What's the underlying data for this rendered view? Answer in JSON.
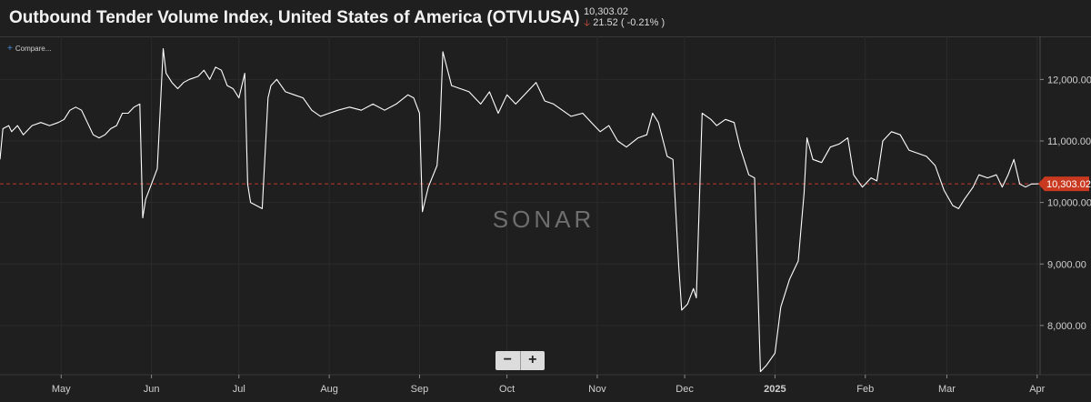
{
  "header": {
    "title": "Outbound Tender Volume Index, United States of America (OTVI.USA)",
    "last_value": "10,303.02",
    "change": "21.52",
    "change_pct": "( -0.21% )",
    "change_direction": "down"
  },
  "toolbar": {
    "compare_label": "Compare..."
  },
  "watermark": "SONAR",
  "zoom": {
    "minus_label": "−",
    "plus_label": "+"
  },
  "colors": {
    "background": "#1f1f1f",
    "line": "#ffffff",
    "price_line": "#c0392b",
    "price_tag": "#c9391f",
    "down_arrow": "#e0533a"
  },
  "chart_data": {
    "type": "line",
    "title": "Outbound Tender Volume Index, United States of America (OTVI.USA)",
    "xlabel": "",
    "ylabel": "",
    "x_ticks": [
      "May",
      "Jun",
      "Jul",
      "Aug",
      "Sep",
      "Oct",
      "Nov",
      "Dec",
      "2025",
      "Feb",
      "Mar",
      "Apr"
    ],
    "y_ticks": [
      "12,000.00",
      "11,000.00",
      "10,000.00",
      "9,000.00",
      "8,000.00"
    ],
    "ylim": [
      7200,
      12700
    ],
    "xlim": [
      "2024-04-10",
      "2025-04-02"
    ],
    "grid": true,
    "current_value": 10303.02,
    "current_value_label": "10,303.02",
    "series": [
      {
        "points": [
          [
            "2024-04-10",
            10700
          ],
          [
            "2024-04-11",
            11200
          ],
          [
            "2024-04-13",
            11250
          ],
          [
            "2024-04-14",
            11150
          ],
          [
            "2024-04-16",
            11250
          ],
          [
            "2024-04-18",
            11100
          ],
          [
            "2024-04-21",
            11250
          ],
          [
            "2024-04-24",
            11300
          ],
          [
            "2024-04-27",
            11250
          ],
          [
            "2024-04-30",
            11300
          ],
          [
            "2024-05-02",
            11350
          ],
          [
            "2024-05-04",
            11500
          ],
          [
            "2024-05-06",
            11550
          ],
          [
            "2024-05-08",
            11500
          ],
          [
            "2024-05-10",
            11300
          ],
          [
            "2024-05-12",
            11100
          ],
          [
            "2024-05-14",
            11050
          ],
          [
            "2024-05-16",
            11100
          ],
          [
            "2024-05-18",
            11200
          ],
          [
            "2024-05-20",
            11250
          ],
          [
            "2024-05-22",
            11450
          ],
          [
            "2024-05-24",
            11450
          ],
          [
            "2024-05-26",
            11550
          ],
          [
            "2024-05-28",
            11600
          ],
          [
            "2024-05-29",
            9750
          ],
          [
            "2024-05-30",
            10050
          ],
          [
            "2024-06-01",
            10300
          ],
          [
            "2024-06-03",
            10550
          ],
          [
            "2024-06-04",
            11500
          ],
          [
            "2024-06-05",
            12500
          ],
          [
            "2024-06-06",
            12100
          ],
          [
            "2024-06-08",
            11950
          ],
          [
            "2024-06-10",
            11850
          ],
          [
            "2024-06-12",
            11950
          ],
          [
            "2024-06-14",
            12000
          ],
          [
            "2024-06-17",
            12050
          ],
          [
            "2024-06-19",
            12150
          ],
          [
            "2024-06-21",
            12000
          ],
          [
            "2024-06-23",
            12200
          ],
          [
            "2024-06-25",
            12150
          ],
          [
            "2024-06-27",
            11900
          ],
          [
            "2024-06-29",
            11850
          ],
          [
            "2024-07-01",
            11700
          ],
          [
            "2024-07-03",
            12100
          ],
          [
            "2024-07-04",
            10300
          ],
          [
            "2024-07-05",
            10000
          ],
          [
            "2024-07-07",
            9950
          ],
          [
            "2024-07-09",
            9900
          ],
          [
            "2024-07-11",
            11700
          ],
          [
            "2024-07-12",
            11900
          ],
          [
            "2024-07-14",
            12000
          ],
          [
            "2024-07-17",
            11800
          ],
          [
            "2024-07-20",
            11750
          ],
          [
            "2024-07-23",
            11700
          ],
          [
            "2024-07-26",
            11500
          ],
          [
            "2024-07-29",
            11400
          ],
          [
            "2024-08-01",
            11450
          ],
          [
            "2024-08-04",
            11500
          ],
          [
            "2024-08-08",
            11550
          ],
          [
            "2024-08-12",
            11500
          ],
          [
            "2024-08-16",
            11600
          ],
          [
            "2024-08-20",
            11500
          ],
          [
            "2024-08-24",
            11600
          ],
          [
            "2024-08-28",
            11750
          ],
          [
            "2024-08-30",
            11700
          ],
          [
            "2024-09-01",
            11450
          ],
          [
            "2024-09-02",
            9850
          ],
          [
            "2024-09-04",
            10250
          ],
          [
            "2024-09-07",
            10600
          ],
          [
            "2024-09-08",
            11200
          ],
          [
            "2024-09-09",
            12450
          ],
          [
            "2024-09-12",
            11900
          ],
          [
            "2024-09-15",
            11850
          ],
          [
            "2024-09-18",
            11800
          ],
          [
            "2024-09-22",
            11600
          ],
          [
            "2024-09-25",
            11800
          ],
          [
            "2024-09-28",
            11450
          ],
          [
            "2024-10-01",
            11750
          ],
          [
            "2024-10-04",
            11600
          ],
          [
            "2024-10-08",
            11800
          ],
          [
            "2024-10-11",
            11950
          ],
          [
            "2024-10-14",
            11650
          ],
          [
            "2024-10-17",
            11600
          ],
          [
            "2024-10-20",
            11500
          ],
          [
            "2024-10-23",
            11400
          ],
          [
            "2024-10-27",
            11450
          ],
          [
            "2024-10-30",
            11300
          ],
          [
            "2024-11-02",
            11150
          ],
          [
            "2024-11-05",
            11250
          ],
          [
            "2024-11-08",
            11000
          ],
          [
            "2024-11-11",
            10900
          ],
          [
            "2024-11-15",
            11050
          ],
          [
            "2024-11-18",
            11100
          ],
          [
            "2024-11-20",
            11450
          ],
          [
            "2024-11-22",
            11300
          ],
          [
            "2024-11-25",
            10750
          ],
          [
            "2024-11-27",
            10700
          ],
          [
            "2024-11-29",
            8950
          ],
          [
            "2024-11-30",
            8250
          ],
          [
            "2024-12-02",
            8350
          ],
          [
            "2024-12-04",
            8600
          ],
          [
            "2024-12-05",
            8450
          ],
          [
            "2024-12-07",
            11450
          ],
          [
            "2024-12-10",
            11350
          ],
          [
            "2024-12-12",
            11250
          ],
          [
            "2024-12-15",
            11350
          ],
          [
            "2024-12-18",
            11300
          ],
          [
            "2024-12-20",
            10900
          ],
          [
            "2024-12-23",
            10450
          ],
          [
            "2024-12-25",
            10400
          ],
          [
            "2024-12-27",
            7250
          ],
          [
            "2024-12-29",
            7350
          ],
          [
            "2025-01-01",
            7550
          ],
          [
            "2025-01-03",
            8300
          ],
          [
            "2025-01-06",
            8750
          ],
          [
            "2025-01-07",
            8850
          ],
          [
            "2025-01-09",
            9050
          ],
          [
            "2025-01-11",
            10150
          ],
          [
            "2025-01-12",
            11050
          ],
          [
            "2025-01-14",
            10700
          ],
          [
            "2025-01-17",
            10650
          ],
          [
            "2025-01-20",
            10900
          ],
          [
            "2025-01-23",
            10950
          ],
          [
            "2025-01-26",
            11050
          ],
          [
            "2025-01-28",
            10450
          ],
          [
            "2025-01-31",
            10250
          ],
          [
            "2025-02-03",
            10400
          ],
          [
            "2025-02-05",
            10350
          ],
          [
            "2025-02-07",
            11000
          ],
          [
            "2025-02-10",
            11150
          ],
          [
            "2025-02-13",
            11100
          ],
          [
            "2025-02-16",
            10850
          ],
          [
            "2025-02-19",
            10800
          ],
          [
            "2025-02-22",
            10750
          ],
          [
            "2025-02-25",
            10600
          ],
          [
            "2025-02-28",
            10200
          ],
          [
            "2025-03-03",
            9950
          ],
          [
            "2025-03-05",
            9900
          ],
          [
            "2025-03-07",
            10050
          ],
          [
            "2025-03-10",
            10250
          ],
          [
            "2025-03-12",
            10450
          ],
          [
            "2025-03-15",
            10400
          ],
          [
            "2025-03-18",
            10450
          ],
          [
            "2025-03-20",
            10250
          ],
          [
            "2025-03-22",
            10450
          ],
          [
            "2025-03-24",
            10700
          ],
          [
            "2025-03-26",
            10300
          ],
          [
            "2025-03-28",
            10250
          ],
          [
            "2025-03-30",
            10300
          ],
          [
            "2025-04-02",
            10303
          ]
        ]
      }
    ]
  }
}
